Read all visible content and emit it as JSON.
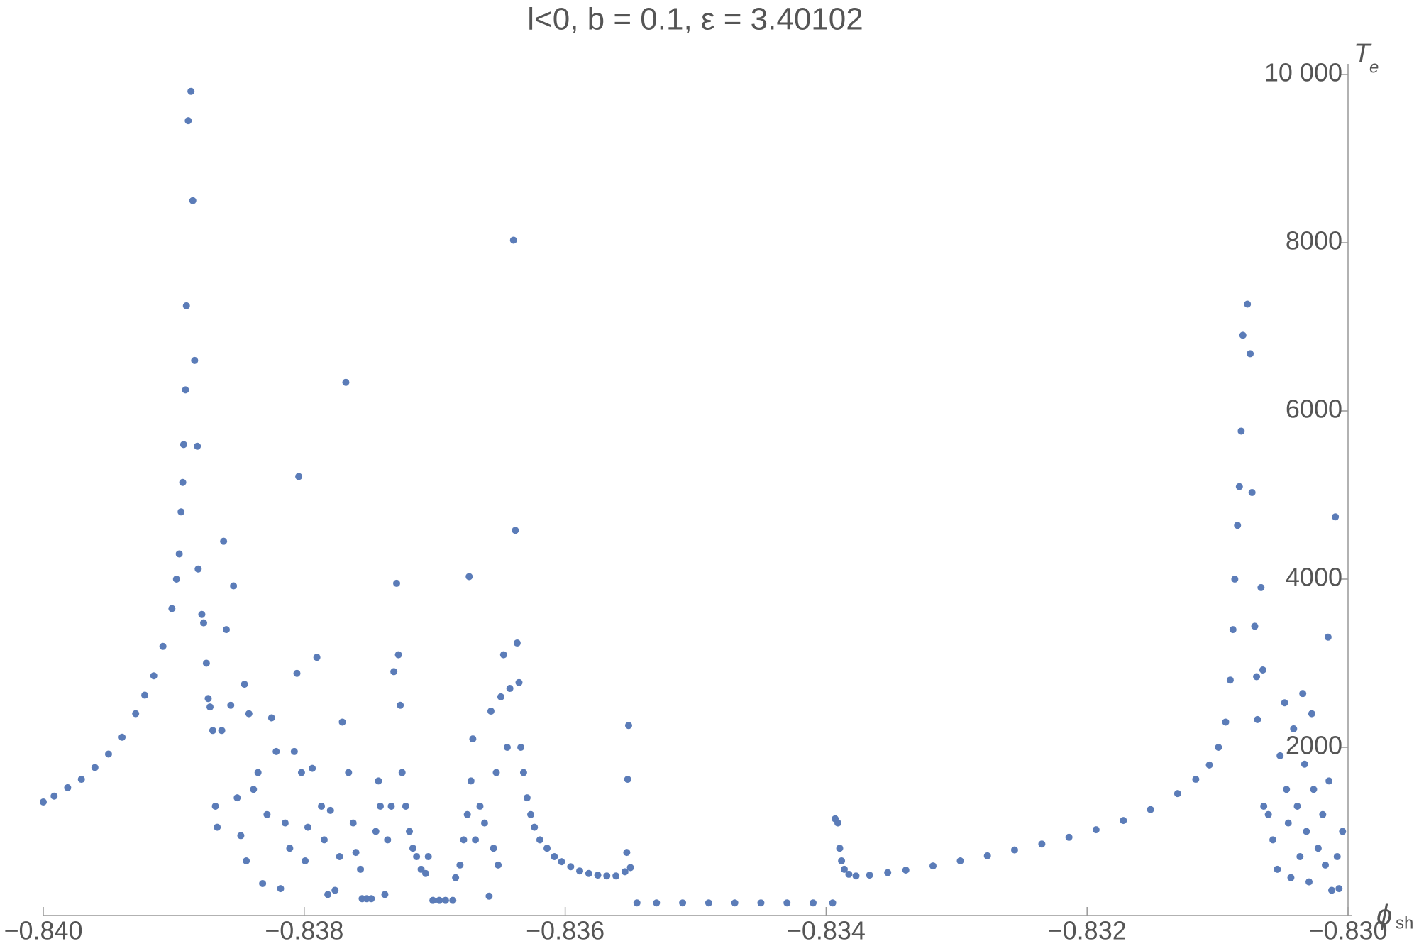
{
  "chart_data": {
    "type": "scatter",
    "title": "l<0, b = 0.1, ε = 3.40102",
    "x_label": "ϕ",
    "x_label_sub": "sh",
    "y_label": "T",
    "y_label_sub": "e",
    "color": "#5b7cb8",
    "xlim": [
      -0.84,
      -0.83
    ],
    "ylim": [
      0,
      10000
    ],
    "xticks": [
      {
        "value": -0.84,
        "label": "−0.840"
      },
      {
        "value": -0.838,
        "label": "−0.838"
      },
      {
        "value": -0.836,
        "label": "−0.836"
      },
      {
        "value": -0.834,
        "label": "−0.834"
      },
      {
        "value": -0.832,
        "label": "−0.832"
      },
      {
        "value": -0.83,
        "label": "−0.830"
      }
    ],
    "yticks": [
      2000,
      4000,
      6000,
      8000,
      {
        "value": 10000,
        "label": "10 000"
      }
    ],
    "x": [
      -0.84,
      -0.839917,
      -0.839813,
      -0.839708,
      -0.839604,
      -0.8395,
      -0.839396,
      -0.839292,
      -0.839222,
      -0.839153,
      -0.839083,
      -0.839014,
      -0.838979,
      -0.838958,
      -0.838944,
      -0.838931,
      -0.838924,
      -0.83891,
      -0.838903,
      -0.838889,
      -0.838868,
      -0.838854,
      -0.83884,
      -0.838819,
      -0.838813,
      -0.838785,
      -0.838771,
      -0.83875,
      -0.838736,
      -0.838722,
      -0.838701,
      -0.838681,
      -0.838667,
      -0.838632,
      -0.838618,
      -0.838597,
      -0.838563,
      -0.838542,
      -0.838514,
      -0.838486,
      -0.838458,
      -0.838444,
      -0.838424,
      -0.838389,
      -0.838354,
      -0.838319,
      -0.838285,
      -0.83825,
      -0.838215,
      -0.838181,
      -0.838146,
      -0.838111,
      -0.838076,
      -0.838056,
      -0.838042,
      -0.838021,
      -0.837993,
      -0.837972,
      -0.837938,
      -0.837903,
      -0.837868,
      -0.837847,
      -0.837819,
      -0.837799,
      -0.837764,
      -0.837729,
      -0.837708,
      -0.837681,
      -0.83766,
      -0.837625,
      -0.837604,
      -0.837569,
      -0.837556,
      -0.837521,
      -0.837486,
      -0.837451,
      -0.837431,
      -0.837417,
      -0.837382,
      -0.837361,
      -0.837333,
      -0.837313,
      -0.837292,
      -0.837278,
      -0.837264,
      -0.83725,
      -0.837222,
      -0.837194,
      -0.837167,
      -0.837139,
      -0.837104,
      -0.837069,
      -0.837049,
      -0.837014,
      -0.836965,
      -0.836917,
      -0.836861,
      -0.83684,
      -0.836806,
      -0.836778,
      -0.83675,
      -0.836736,
      -0.836722,
      -0.836708,
      -0.836688,
      -0.836653,
      -0.836618,
      -0.836583,
      -0.836569,
      -0.836549,
      -0.836528,
      -0.836514,
      -0.836493,
      -0.836472,
      -0.836444,
      -0.836424,
      -0.836396,
      -0.836382,
      -0.836368,
      -0.836354,
      -0.83634,
      -0.836319,
      -0.836292,
      -0.836264,
      -0.836236,
      -0.836194,
      -0.836139,
      -0.836083,
      -0.836028,
      -0.835958,
      -0.835889,
      -0.835819,
      -0.83575,
      -0.835681,
      -0.835611,
      -0.835542,
      -0.835528,
      -0.835521,
      -0.835514,
      -0.8355,
      -0.83545,
      -0.8353,
      -0.8351,
      -0.8349,
      -0.8347,
      -0.8345,
      -0.8343,
      -0.8341,
      -0.83395,
      -0.833931,
      -0.83391,
      -0.833896,
      -0.833882,
      -0.833861,
      -0.833826,
      -0.833771,
      -0.833667,
      -0.833528,
      -0.833389,
      -0.833181,
      -0.832972,
      -0.832764,
      -0.832556,
      -0.832347,
      -0.832139,
      -0.831931,
      -0.831722,
      -0.831514,
      -0.831306,
      -0.831167,
      -0.831063,
      -0.830993,
      -0.830938,
      -0.830903,
      -0.830882,
      -0.830868,
      -0.830847,
      -0.830833,
      -0.830819,
      -0.830806,
      -0.830771,
      -0.83075,
      -0.830736,
      -0.830715,
      -0.830701,
      -0.830667,
      -0.830653,
      -0.830694,
      -0.830646,
      -0.830611,
      -0.830576,
      -0.830542,
      -0.830521,
      -0.830486,
      -0.830472,
      -0.830458,
      -0.830438,
      -0.830417,
      -0.830389,
      -0.830368,
      -0.830347,
      -0.830333,
      -0.830319,
      -0.830299,
      -0.830278,
      -0.830264,
      -0.830229,
      -0.830194,
      -0.830174,
      -0.830146,
      -0.830125,
      -0.830097,
      -0.830083,
      -0.830069,
      -0.830042,
      -0.830153
    ],
    "values": [
      1350,
      1420,
      1520,
      1620,
      1760,
      1920,
      2120,
      2400,
      2620,
      2850,
      3200,
      3650,
      4000,
      4300,
      4800,
      5150,
      5600,
      6250,
      7250,
      9450,
      9800,
      8500,
      6600,
      5580,
      4120,
      3580,
      3480,
      3000,
      2580,
      2480,
      2200,
      1300,
      1050,
      2200,
      4450,
      3400,
      2500,
      3920,
      1400,
      950,
      2750,
      650,
      2400,
      1500,
      1700,
      380,
      1200,
      2350,
      1950,
      320,
      1100,
      800,
      1950,
      2880,
      5220,
      1700,
      650,
      1050,
      1750,
      3070,
      1300,
      900,
      250,
      1250,
      300,
      700,
      2300,
      6340,
      1700,
      1100,
      750,
      550,
      200,
      200,
      200,
      1000,
      1600,
      1300,
      250,
      900,
      1300,
      2900,
      3950,
      3100,
      2500,
      1700,
      1300,
      1000,
      800,
      700,
      550,
      500,
      700,
      180,
      180,
      180,
      180,
      450,
      600,
      900,
      1200,
      4030,
      1600,
      2100,
      900,
      1300,
      1100,
      230,
      2430,
      800,
      1700,
      600,
      2600,
      3100,
      2000,
      2700,
      8030,
      4580,
      3240,
      2770,
      2000,
      1700,
      1400,
      1200,
      1050,
      900,
      800,
      700,
      640,
      580,
      530,
      500,
      480,
      470,
      470,
      520,
      750,
      1620,
      2260,
      570,
      150,
      150,
      150,
      150,
      150,
      150,
      150,
      150,
      150,
      1150,
      1100,
      800,
      650,
      550,
      490,
      470,
      480,
      510,
      540,
      590,
      650,
      710,
      780,
      850,
      930,
      1020,
      1130,
      1260,
      1450,
      1620,
      1790,
      2000,
      2300,
      2800,
      3400,
      4000,
      4640,
      5100,
      5760,
      6900,
      7270,
      6680,
      5030,
      3440,
      2840,
      3900,
      2920,
      2330,
      1300,
      1200,
      900,
      550,
      1900,
      2530,
      1500,
      1100,
      450,
      2220,
      1300,
      700,
      2640,
      1800,
      1000,
      400,
      2400,
      1500,
      800,
      1200,
      600,
      1600,
      300,
      4740,
      700,
      320,
      1000,
      3310
    ]
  }
}
